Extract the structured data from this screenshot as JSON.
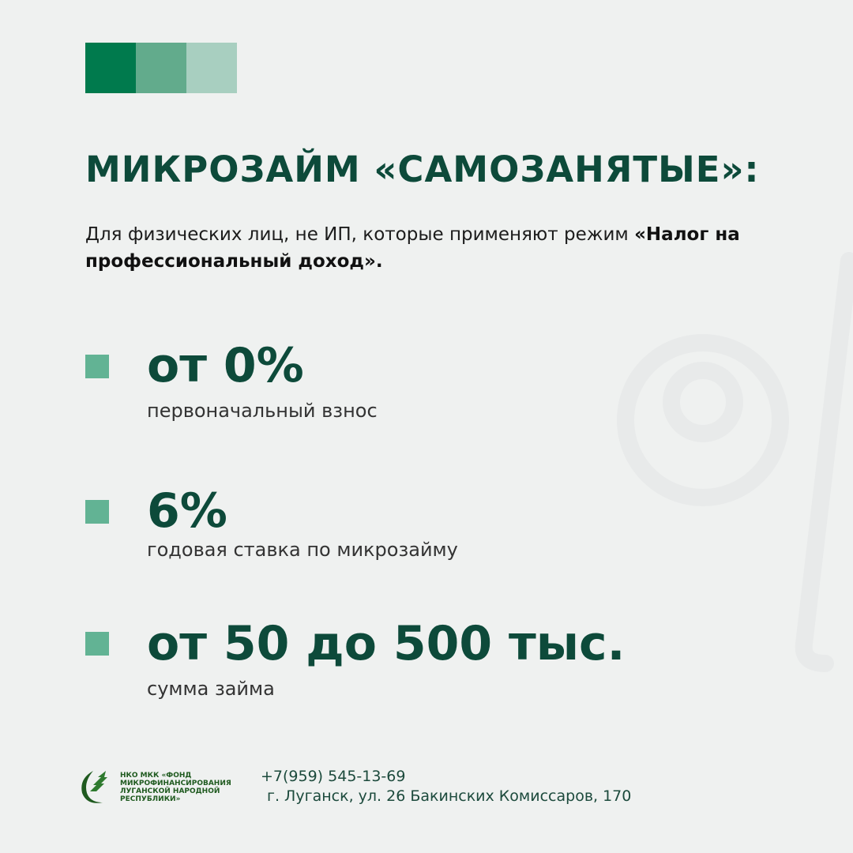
{
  "colors": {
    "dark": "#007a4d",
    "mid": "#62ab8c",
    "light": "#a8cfc0",
    "text": "#0d4a3a",
    "bullet": "#62b394",
    "background": "#eff1f0"
  },
  "title": "МИКРОЗАЙМ «САМОЗАНЯТЫЕ»:",
  "subtitle": {
    "text": "Для физических лиц, не ИП, которые применяют режим ",
    "bold": "«Налог на профессиональный доход»."
  },
  "items": [
    {
      "value": "от 0%",
      "label": "первоначальный взнос"
    },
    {
      "value": "6%",
      "label": "годовая ставка по микрозайму"
    },
    {
      "value": "от 50 до 500 тыс.",
      "label": "сумма займа"
    }
  ],
  "footer": {
    "logo_text": [
      "НКО МКК «ФОНД",
      "МИКРОФИНАНСИРОВАНИЯ",
      "ЛУГАНСКОЙ НАРОДНОЙ",
      "РЕСПУБЛИКИ»"
    ],
    "phone": "+7(959) 545-13-69",
    "address": "г. Луганск, ул. 26 Бакинских Комиссаров, 170"
  }
}
